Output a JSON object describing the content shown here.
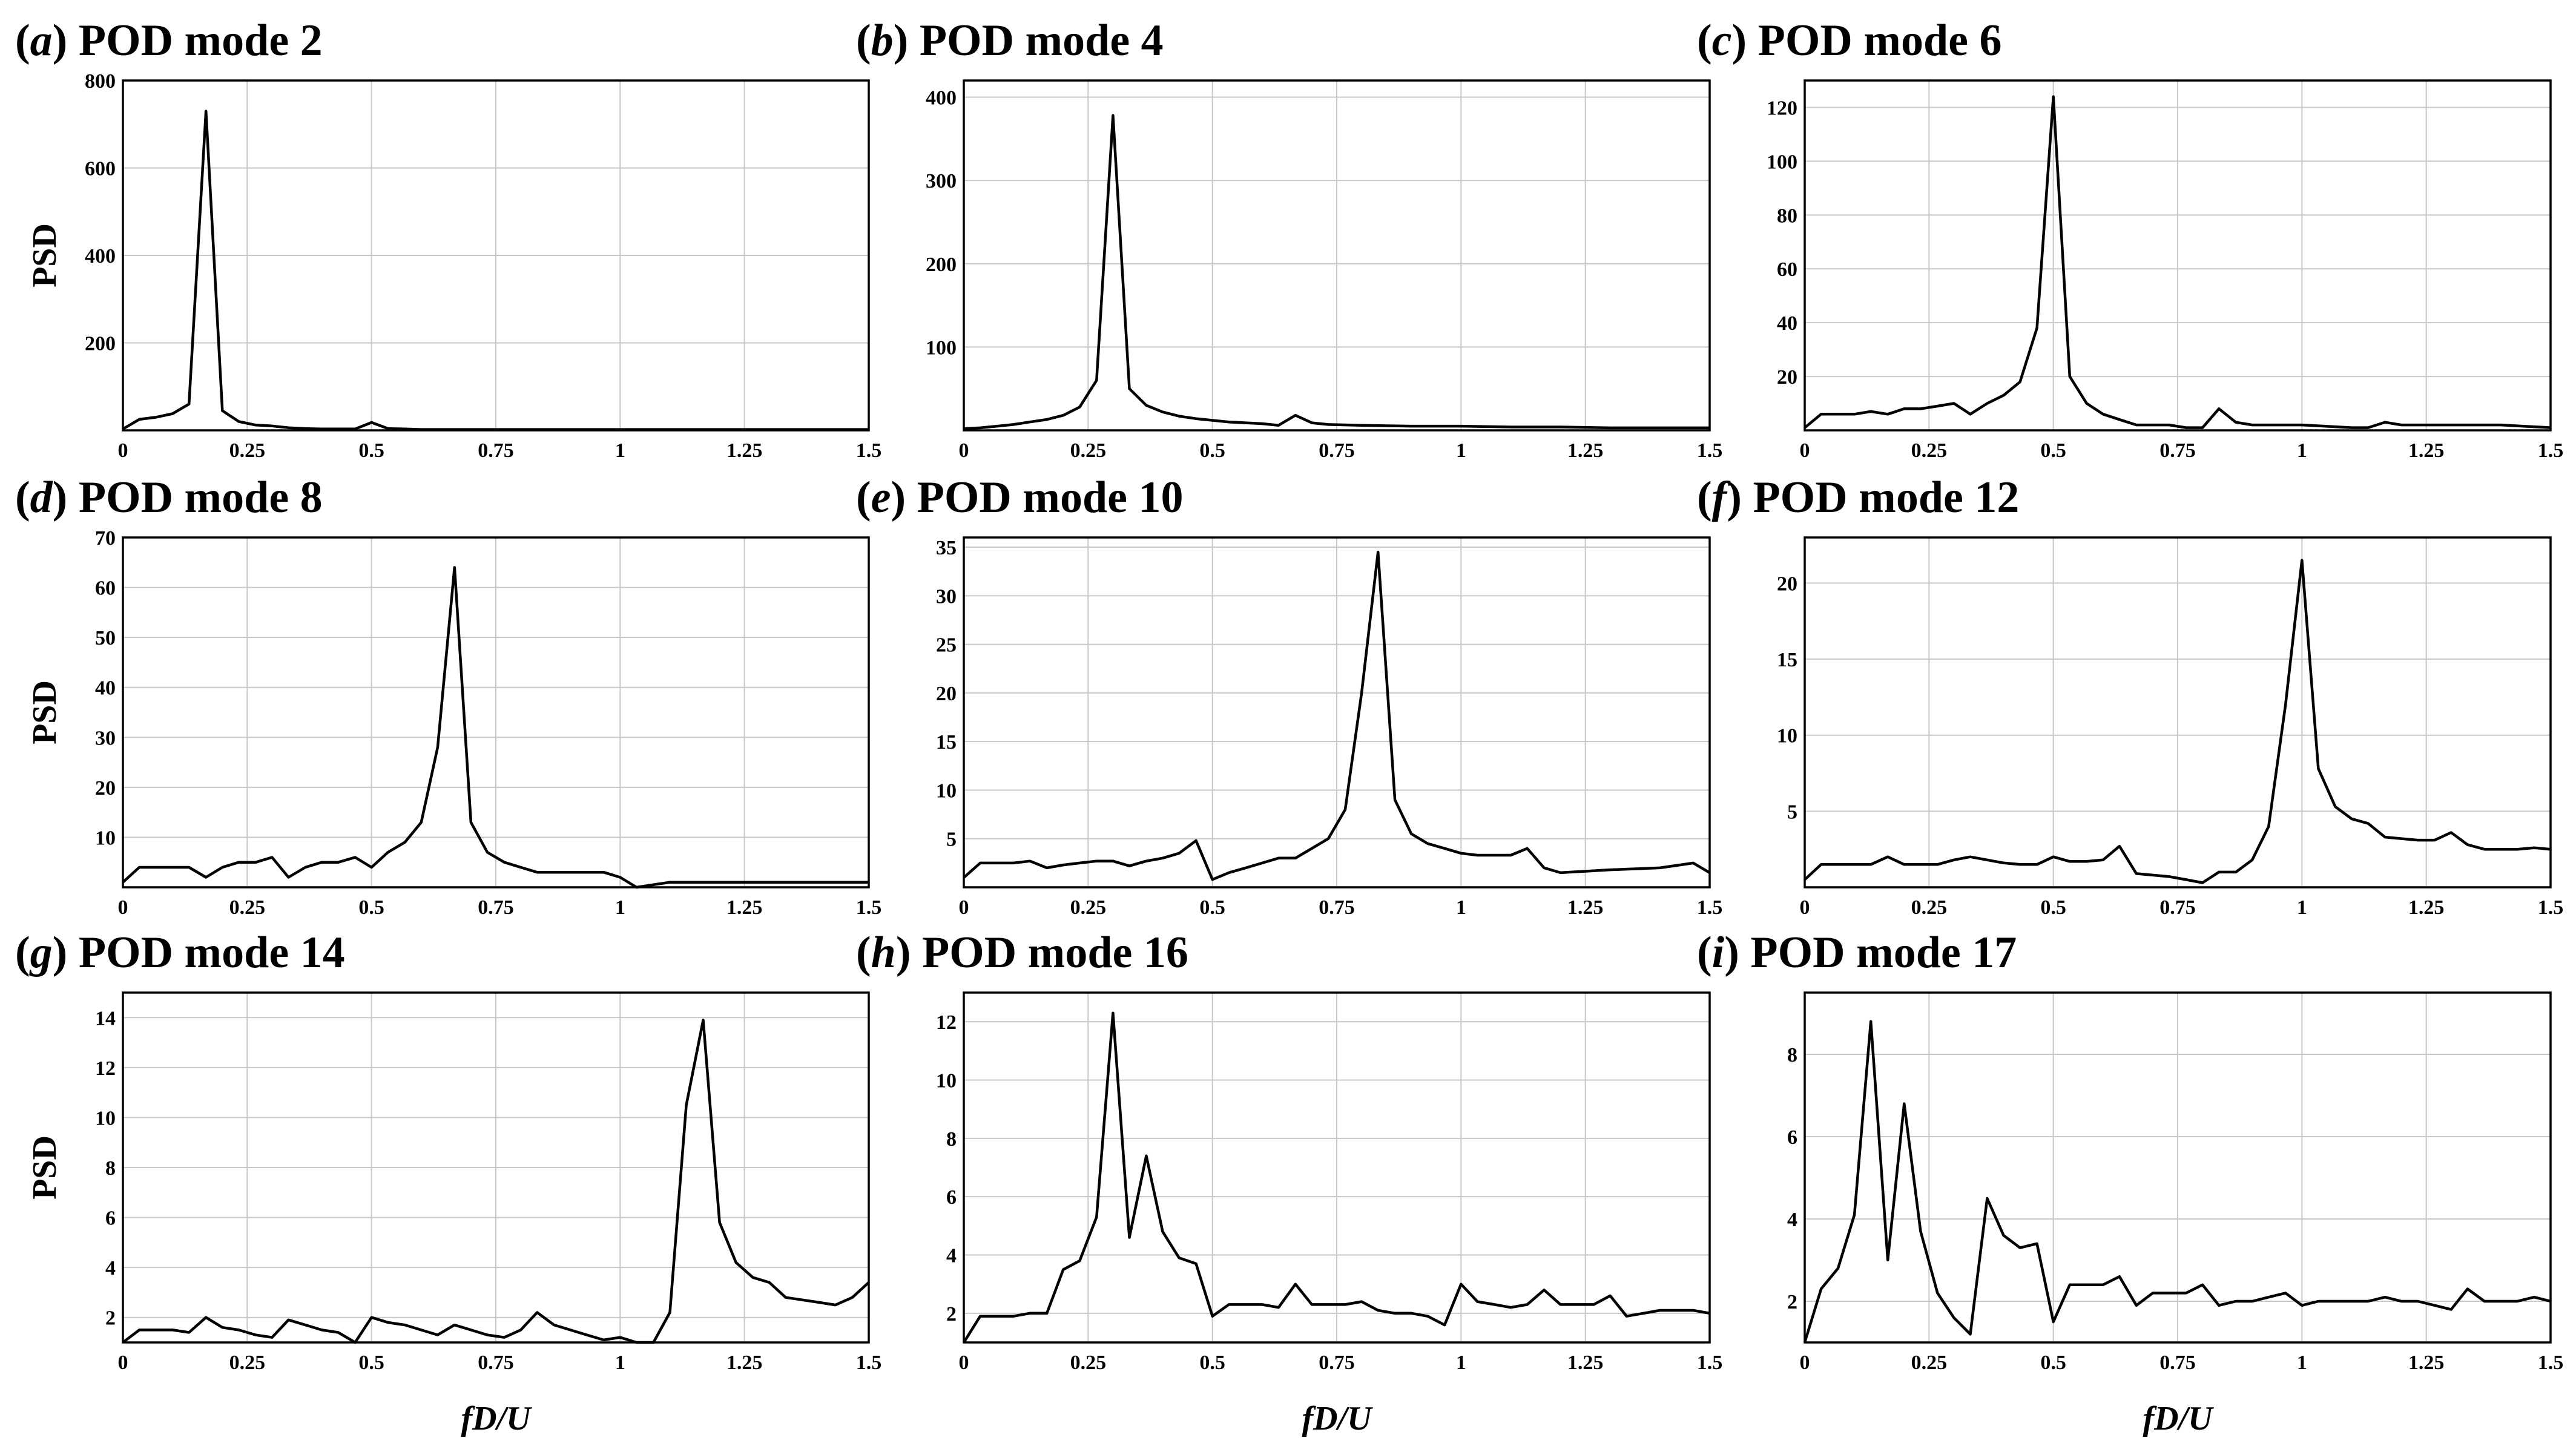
{
  "chart_data": [
    {
      "type": "line",
      "panel_letter": "a",
      "title": "POD mode 2",
      "xlabel": "",
      "ylabel": "PSD",
      "xlim": [
        0,
        1.5
      ],
      "ylim": [
        0,
        800
      ],
      "xticks": [
        0,
        0.25,
        0.5,
        0.75,
        1,
        1.25,
        1.5
      ],
      "xtick_labels": [
        "0",
        "0.25",
        "0.5",
        "0.75",
        "1",
        "1.25",
        "1.5"
      ],
      "yticks": [
        200,
        400,
        600,
        800
      ],
      "ytick_labels": [
        "200",
        "400",
        "600",
        "800"
      ],
      "grid": true,
      "x": [
        0,
        0.033,
        0.067,
        0.1,
        0.133,
        0.167,
        0.2,
        0.233,
        0.267,
        0.3,
        0.333,
        0.367,
        0.4,
        0.433,
        0.467,
        0.5,
        0.533,
        0.567,
        0.6,
        0.7,
        0.8,
        0.9,
        1.0,
        1.1,
        1.2,
        1.3,
        1.4,
        1.5
      ],
      "y": [
        3,
        25,
        30,
        38,
        60,
        730,
        45,
        20,
        12,
        10,
        6,
        4,
        3,
        3,
        3,
        18,
        4,
        3,
        2,
        2,
        2,
        2,
        2,
        2,
        2,
        2,
        2,
        2
      ]
    },
    {
      "type": "line",
      "panel_letter": "b",
      "title": "POD mode 4",
      "xlabel": "",
      "ylabel": "",
      "xlim": [
        0,
        1.5
      ],
      "ylim": [
        0,
        420
      ],
      "xticks": [
        0,
        0.25,
        0.5,
        0.75,
        1,
        1.25,
        1.5
      ],
      "xtick_labels": [
        "0",
        "0.25",
        "0.5",
        "0.75",
        "1",
        "1.25",
        "1.5"
      ],
      "yticks": [
        100,
        200,
        300,
        400
      ],
      "ytick_labels": [
        "100",
        "200",
        "300",
        "400"
      ],
      "grid": true,
      "x": [
        0,
        0.033,
        0.067,
        0.1,
        0.133,
        0.167,
        0.2,
        0.233,
        0.267,
        0.3,
        0.333,
        0.367,
        0.4,
        0.433,
        0.467,
        0.5,
        0.533,
        0.567,
        0.6,
        0.633,
        0.667,
        0.7,
        0.733,
        0.8,
        0.9,
        1.0,
        1.1,
        1.2,
        1.3,
        1.4,
        1.5
      ],
      "y": [
        2,
        3,
        5,
        7,
        10,
        13,
        18,
        28,
        60,
        378,
        50,
        30,
        22,
        17,
        14,
        12,
        10,
        9,
        8,
        6,
        18,
        9,
        7,
        6,
        5,
        5,
        4,
        4,
        3,
        3,
        3
      ]
    },
    {
      "type": "line",
      "panel_letter": "c",
      "title": "POD mode 6",
      "xlabel": "",
      "ylabel": "",
      "xlim": [
        0,
        1.5
      ],
      "ylim": [
        0,
        130
      ],
      "xticks": [
        0,
        0.25,
        0.5,
        0.75,
        1,
        1.25,
        1.5
      ],
      "xtick_labels": [
        "0",
        "0.25",
        "0.5",
        "0.75",
        "1",
        "1.25",
        "1.5"
      ],
      "yticks": [
        20,
        40,
        60,
        80,
        100,
        120
      ],
      "ytick_labels": [
        "20",
        "40",
        "60",
        "80",
        "100",
        "120"
      ],
      "grid": true,
      "x": [
        0,
        0.033,
        0.067,
        0.1,
        0.133,
        0.167,
        0.2,
        0.233,
        0.267,
        0.3,
        0.333,
        0.367,
        0.4,
        0.433,
        0.467,
        0.5,
        0.533,
        0.567,
        0.6,
        0.633,
        0.667,
        0.7,
        0.733,
        0.767,
        0.8,
        0.833,
        0.867,
        0.9,
        1.0,
        1.1,
        1.133,
        1.167,
        1.2,
        1.3,
        1.4,
        1.5
      ],
      "y": [
        1,
        6,
        6,
        6,
        7,
        6,
        8,
        8,
        9,
        10,
        6,
        10,
        13,
        18,
        38,
        124,
        20,
        10,
        6,
        4,
        2,
        2,
        2,
        1,
        1,
        8,
        3,
        2,
        2,
        1,
        1,
        3,
        2,
        2,
        2,
        1
      ]
    },
    {
      "type": "line",
      "panel_letter": "d",
      "title": "POD mode 8",
      "xlabel": "",
      "ylabel": "PSD",
      "xlim": [
        0,
        1.5
      ],
      "ylim": [
        0,
        70
      ],
      "xticks": [
        0,
        0.25,
        0.5,
        0.75,
        1,
        1.25,
        1.5
      ],
      "xtick_labels": [
        "0",
        "0.25",
        "0.5",
        "0.75",
        "1",
        "1.25",
        "1.5"
      ],
      "yticks": [
        10,
        20,
        30,
        40,
        50,
        60,
        70
      ],
      "ytick_labels": [
        "10",
        "20",
        "30",
        "40",
        "50",
        "60",
        "70"
      ],
      "grid": true,
      "x": [
        0,
        0.033,
        0.067,
        0.1,
        0.133,
        0.167,
        0.2,
        0.233,
        0.267,
        0.3,
        0.333,
        0.367,
        0.4,
        0.433,
        0.467,
        0.5,
        0.533,
        0.567,
        0.6,
        0.633,
        0.667,
        0.7,
        0.733,
        0.767,
        0.8,
        0.833,
        0.867,
        0.9,
        0.933,
        0.967,
        1.0,
        1.033,
        1.1,
        1.2,
        1.3,
        1.4,
        1.5
      ],
      "y": [
        1,
        4,
        4,
        4,
        4,
        2,
        4,
        5,
        5,
        6,
        2,
        4,
        5,
        5,
        6,
        4,
        7,
        9,
        13,
        28,
        64,
        13,
        7,
        5,
        4,
        3,
        3,
        3,
        3,
        3,
        2,
        0,
        1,
        1,
        1,
        1,
        1
      ]
    },
    {
      "type": "line",
      "panel_letter": "e",
      "title": "POD mode 10",
      "xlabel": "",
      "ylabel": "",
      "xlim": [
        0,
        1.5
      ],
      "ylim": [
        0,
        36
      ],
      "xticks": [
        0,
        0.25,
        0.5,
        0.75,
        1,
        1.25,
        1.5
      ],
      "xtick_labels": [
        "0",
        "0.25",
        "0.5",
        "0.75",
        "1",
        "1.25",
        "1.5"
      ],
      "yticks": [
        5,
        10,
        15,
        20,
        25,
        30,
        35
      ],
      "ytick_labels": [
        "5",
        "10",
        "15",
        "20",
        "25",
        "30",
        "35"
      ],
      "grid": true,
      "x": [
        0,
        0.033,
        0.067,
        0.1,
        0.133,
        0.167,
        0.2,
        0.233,
        0.267,
        0.3,
        0.333,
        0.367,
        0.4,
        0.433,
        0.467,
        0.5,
        0.533,
        0.567,
        0.6,
        0.633,
        0.667,
        0.7,
        0.733,
        0.767,
        0.8,
        0.833,
        0.867,
        0.9,
        0.933,
        0.967,
        1.0,
        1.033,
        1.1,
        1.133,
        1.167,
        1.2,
        1.3,
        1.4,
        1.467,
        1.5
      ],
      "y": [
        1,
        2.5,
        2.5,
        2.5,
        2.7,
        2,
        2.3,
        2.5,
        2.7,
        2.7,
        2.2,
        2.7,
        3,
        3.5,
        4.8,
        0.8,
        1.5,
        2,
        2.5,
        3,
        3,
        4,
        5,
        8,
        20,
        34.5,
        9,
        5.5,
        4.5,
        4,
        3.5,
        3.3,
        3.3,
        4,
        2,
        1.5,
        1.8,
        2,
        2.5,
        1.5
      ]
    },
    {
      "type": "line",
      "panel_letter": "f",
      "title": "POD mode 12",
      "xlabel": "",
      "ylabel": "",
      "xlim": [
        0,
        1.5
      ],
      "ylim": [
        0,
        23
      ],
      "xticks": [
        0,
        0.25,
        0.5,
        0.75,
        1,
        1.25,
        1.5
      ],
      "xtick_labels": [
        "0",
        "0.25",
        "0.5",
        "0.75",
        "1",
        "1.25",
        "1.5"
      ],
      "yticks": [
        5,
        10,
        15,
        20
      ],
      "ytick_labels": [
        "5",
        "10",
        "15",
        "20"
      ],
      "grid": true,
      "x": [
        0,
        0.033,
        0.067,
        0.1,
        0.133,
        0.167,
        0.2,
        0.233,
        0.267,
        0.3,
        0.333,
        0.367,
        0.4,
        0.433,
        0.467,
        0.5,
        0.533,
        0.567,
        0.6,
        0.633,
        0.667,
        0.7,
        0.733,
        0.767,
        0.8,
        0.833,
        0.867,
        0.9,
        0.933,
        0.967,
        1.0,
        1.033,
        1.067,
        1.1,
        1.133,
        1.167,
        1.2,
        1.233,
        1.267,
        1.3,
        1.333,
        1.367,
        1.4,
        1.433,
        1.467,
        1.5
      ],
      "y": [
        0.5,
        1.5,
        1.5,
        1.5,
        1.5,
        2,
        1.5,
        1.5,
        1.5,
        1.8,
        2,
        1.8,
        1.6,
        1.5,
        1.5,
        2,
        1.7,
        1.7,
        1.8,
        2.7,
        0.9,
        0.8,
        0.7,
        0.5,
        0.3,
        1,
        1,
        1.8,
        4,
        12,
        21.5,
        7.8,
        5.3,
        4.5,
        4.2,
        3.3,
        3.2,
        3.1,
        3.1,
        3.6,
        2.8,
        2.5,
        2.5,
        2.5,
        2.6,
        2.5
      ]
    },
    {
      "type": "line",
      "panel_letter": "g",
      "title": "POD mode 14",
      "xlabel": "fD/U",
      "ylabel": "PSD",
      "xlim": [
        0,
        1.5
      ],
      "ylim": [
        1,
        15
      ],
      "xticks": [
        0,
        0.25,
        0.5,
        0.75,
        1,
        1.25,
        1.5
      ],
      "xtick_labels": [
        "0",
        "0.25",
        "0.5",
        "0.75",
        "1",
        "1.25",
        "1.5"
      ],
      "yticks": [
        2,
        4,
        6,
        8,
        10,
        12,
        14
      ],
      "ytick_labels": [
        "2",
        "4",
        "6",
        "8",
        "10",
        "12",
        "14"
      ],
      "grid": true,
      "x": [
        0,
        0.033,
        0.067,
        0.1,
        0.133,
        0.167,
        0.2,
        0.233,
        0.267,
        0.3,
        0.333,
        0.367,
        0.4,
        0.433,
        0.467,
        0.5,
        0.533,
        0.567,
        0.6,
        0.633,
        0.667,
        0.7,
        0.733,
        0.767,
        0.8,
        0.833,
        0.867,
        0.9,
        0.933,
        0.967,
        1.0,
        1.033,
        1.067,
        1.1,
        1.133,
        1.167,
        1.2,
        1.233,
        1.267,
        1.3,
        1.333,
        1.367,
        1.4,
        1.433,
        1.467,
        1.5
      ],
      "y": [
        1,
        1.5,
        1.5,
        1.5,
        1.4,
        2,
        1.6,
        1.5,
        1.3,
        1.2,
        1.9,
        1.7,
        1.5,
        1.4,
        1,
        2,
        1.8,
        1.7,
        1.5,
        1.3,
        1.7,
        1.5,
        1.3,
        1.2,
        1.5,
        2.2,
        1.7,
        1.5,
        1.3,
        1.1,
        1.2,
        0.8,
        1,
        2.2,
        10.5,
        13.9,
        5.8,
        4.2,
        3.6,
        3.4,
        2.8,
        2.7,
        2.6,
        2.5,
        2.8,
        3.4
      ]
    },
    {
      "type": "line",
      "panel_letter": "h",
      "title": "POD mode 16",
      "xlabel": "fD/U",
      "ylabel": "",
      "xlim": [
        0,
        1.5
      ],
      "ylim": [
        1,
        13
      ],
      "xticks": [
        0,
        0.25,
        0.5,
        0.75,
        1,
        1.25,
        1.5
      ],
      "xtick_labels": [
        "0",
        "0.25",
        "0.5",
        "0.75",
        "1",
        "1.25",
        "1.5"
      ],
      "yticks": [
        2,
        4,
        6,
        8,
        10,
        12
      ],
      "ytick_labels": [
        "2",
        "4",
        "6",
        "8",
        "10",
        "12"
      ],
      "grid": true,
      "x": [
        0,
        0.033,
        0.067,
        0.1,
        0.133,
        0.167,
        0.2,
        0.233,
        0.267,
        0.3,
        0.333,
        0.367,
        0.4,
        0.433,
        0.467,
        0.5,
        0.533,
        0.567,
        0.6,
        0.633,
        0.667,
        0.7,
        0.733,
        0.767,
        0.8,
        0.833,
        0.867,
        0.9,
        0.933,
        0.967,
        1.0,
        1.033,
        1.067,
        1.1,
        1.133,
        1.167,
        1.2,
        1.233,
        1.267,
        1.3,
        1.333,
        1.367,
        1.4,
        1.433,
        1.467,
        1.5
      ],
      "y": [
        1,
        1.9,
        1.9,
        1.9,
        2,
        2,
        3.5,
        3.8,
        5.3,
        12.3,
        4.6,
        7.4,
        4.8,
        3.9,
        3.7,
        1.9,
        2.3,
        2.3,
        2.3,
        2.2,
        3,
        2.3,
        2.3,
        2.3,
        2.4,
        2.1,
        2,
        2,
        1.9,
        1.6,
        3,
        2.4,
        2.3,
        2.2,
        2.3,
        2.8,
        2.3,
        2.3,
        2.3,
        2.6,
        1.9,
        2,
        2.1,
        2.1,
        2.1,
        2
      ]
    },
    {
      "type": "line",
      "panel_letter": "i",
      "title": "POD mode 17",
      "xlabel": "fD/U",
      "ylabel": "",
      "xlim": [
        0,
        1.5
      ],
      "ylim": [
        1,
        9.5
      ],
      "xticks": [
        0,
        0.25,
        0.5,
        0.75,
        1,
        1.25,
        1.5
      ],
      "xtick_labels": [
        "0",
        "0.25",
        "0.5",
        "0.75",
        "1",
        "1.25",
        "1.5"
      ],
      "yticks": [
        2,
        4,
        6,
        8
      ],
      "ytick_labels": [
        "2",
        "4",
        "6",
        "8"
      ],
      "grid": true,
      "x": [
        0,
        0.033,
        0.067,
        0.1,
        0.133,
        0.167,
        0.2,
        0.233,
        0.267,
        0.3,
        0.333,
        0.367,
        0.4,
        0.433,
        0.467,
        0.5,
        0.533,
        0.567,
        0.6,
        0.633,
        0.667,
        0.7,
        0.733,
        0.767,
        0.8,
        0.833,
        0.867,
        0.9,
        0.933,
        0.967,
        1.0,
        1.033,
        1.067,
        1.1,
        1.133,
        1.167,
        1.2,
        1.233,
        1.267,
        1.3,
        1.333,
        1.367,
        1.4,
        1.433,
        1.467,
        1.5
      ],
      "y": [
        1,
        2.3,
        2.8,
        4.1,
        8.8,
        3,
        6.8,
        3.7,
        2.2,
        1.6,
        1.2,
        4.5,
        3.6,
        3.3,
        3.4,
        1.5,
        2.4,
        2.4,
        2.4,
        2.6,
        1.9,
        2.2,
        2.2,
        2.2,
        2.4,
        1.9,
        2,
        2,
        2.1,
        2.2,
        1.9,
        2,
        2,
        2,
        2,
        2.1,
        2,
        2,
        1.9,
        1.8,
        2.3,
        2,
        2,
        2,
        2.1,
        2
      ]
    }
  ]
}
